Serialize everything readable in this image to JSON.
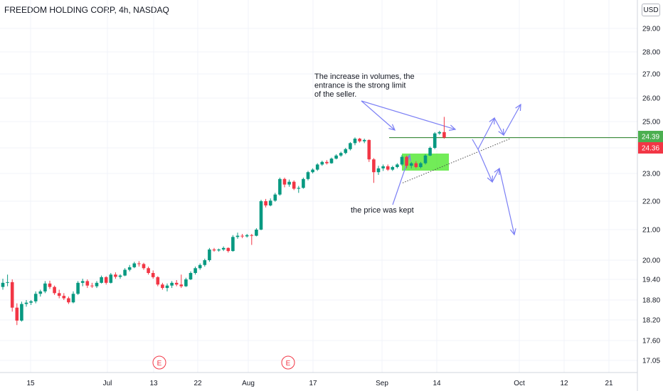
{
  "title": "FREEDOM HOLDING CORP, 4h, NASDAQ",
  "currency": "USD",
  "chart_data": {
    "type": "candlestick",
    "ylim": [
      16.8,
      30.2
    ],
    "y_ticks": [
      "29.00",
      "28.00",
      "27.00",
      "26.00",
      "25.00",
      "24.00",
      "23.00",
      "22.00",
      "21.00",
      "20.00",
      "19.40",
      "18.80",
      "18.20",
      "17.60",
      "17.05"
    ],
    "y_tick_values": [
      29.0,
      28.0,
      27.0,
      26.0,
      25.0,
      24.0,
      23.0,
      22.0,
      21.0,
      20.0,
      19.4,
      18.8,
      18.2,
      17.6,
      17.05
    ],
    "x_ticks": [
      "15",
      "Jul",
      "13",
      "22",
      "Aug",
      "17",
      "Sep",
      "14",
      "Oct",
      "12",
      "21"
    ],
    "price_labels": [
      {
        "text": "24.39",
        "value": 24.39,
        "color": "#4caf50"
      },
      {
        "text": "24.36",
        "value": 24.36,
        "color": "#f23645"
      }
    ],
    "earnings_marker": "E",
    "annotations": {
      "volume_note": [
        "The increase in volumes, the",
        "entrance is the strong limit",
        "of the seller."
      ],
      "price_note": "the price was kept"
    },
    "resistance_level": 24.39,
    "support_line": [
      [
        22.66,
        24.36
      ]
    ],
    "candles": [
      {
        "d": "Jun 11",
        "o": 19.18,
        "h": 19.42,
        "l": 19.1,
        "c": 19.3
      },
      {
        "d": "Jun 12",
        "o": 19.3,
        "h": 19.55,
        "l": 19.2,
        "c": 19.32
      },
      {
        "d": "Jun 13",
        "o": 19.32,
        "h": 19.4,
        "l": 18.45,
        "c": 18.57
      },
      {
        "d": "Jun 14",
        "o": 18.57,
        "h": 18.7,
        "l": 18.05,
        "c": 18.18
      },
      {
        "d": "Jun 15",
        "o": 18.18,
        "h": 18.75,
        "l": 18.15,
        "c": 18.68
      },
      {
        "d": "Jun 16",
        "o": 18.68,
        "h": 18.8,
        "l": 18.6,
        "c": 18.72
      },
      {
        "d": "Jun 17",
        "o": 18.72,
        "h": 18.8,
        "l": 18.65,
        "c": 18.76
      },
      {
        "d": "Jun 18",
        "o": 18.76,
        "h": 19.05,
        "l": 18.7,
        "c": 18.98
      },
      {
        "d": "Jun 19",
        "o": 18.98,
        "h": 19.1,
        "l": 18.9,
        "c": 19.05
      },
      {
        "d": "Jun 20",
        "o": 19.05,
        "h": 19.35,
        "l": 19.0,
        "c": 19.28
      },
      {
        "d": "Jun 21",
        "o": 19.28,
        "h": 19.36,
        "l": 19.12,
        "c": 19.18
      },
      {
        "d": "Jun 22",
        "o": 19.18,
        "h": 19.22,
        "l": 18.95,
        "c": 19.0
      },
      {
        "d": "Jun 23",
        "o": 19.0,
        "h": 19.1,
        "l": 18.85,
        "c": 18.92
      },
      {
        "d": "Jun 24",
        "o": 18.92,
        "h": 19.0,
        "l": 18.8,
        "c": 18.85
      },
      {
        "d": "Jun 25",
        "o": 18.85,
        "h": 18.9,
        "l": 18.68,
        "c": 18.73
      },
      {
        "d": "Jun 26",
        "o": 18.73,
        "h": 19.05,
        "l": 18.7,
        "c": 18.98
      },
      {
        "d": "Jun 27",
        "o": 18.98,
        "h": 19.35,
        "l": 18.95,
        "c": 19.3
      },
      {
        "d": "Jun 28",
        "o": 19.3,
        "h": 19.42,
        "l": 19.2,
        "c": 19.35
      },
      {
        "d": "Jun 29",
        "o": 19.35,
        "h": 19.4,
        "l": 19.15,
        "c": 19.22
      },
      {
        "d": "Jun 30",
        "o": 19.22,
        "h": 19.3,
        "l": 19.15,
        "c": 19.2
      },
      {
        "d": "Jul 1",
        "o": 19.2,
        "h": 19.35,
        "l": 19.15,
        "c": 19.3
      },
      {
        "d": "Jul 2",
        "o": 19.3,
        "h": 19.52,
        "l": 19.28,
        "c": 19.47
      },
      {
        "d": "Jul 3",
        "o": 19.47,
        "h": 19.5,
        "l": 19.25,
        "c": 19.3
      },
      {
        "d": "Jul 4",
        "o": 19.3,
        "h": 19.6,
        "l": 19.28,
        "c": 19.55
      },
      {
        "d": "Jul 5",
        "o": 19.55,
        "h": 19.62,
        "l": 19.42,
        "c": 19.48
      },
      {
        "d": "Jul 6",
        "o": 19.48,
        "h": 19.56,
        "l": 19.42,
        "c": 19.52
      },
      {
        "d": "Jul 7",
        "o": 19.52,
        "h": 19.75,
        "l": 19.5,
        "c": 19.7
      },
      {
        "d": "Jul 8",
        "o": 19.7,
        "h": 19.85,
        "l": 19.65,
        "c": 19.78
      },
      {
        "d": "Jul 9",
        "o": 19.78,
        "h": 19.95,
        "l": 19.75,
        "c": 19.9
      },
      {
        "d": "Jul 10",
        "o": 19.9,
        "h": 19.97,
        "l": 19.8,
        "c": 19.88
      },
      {
        "d": "Jul 11",
        "o": 19.88,
        "h": 19.92,
        "l": 19.7,
        "c": 19.75
      },
      {
        "d": "Jul 12",
        "o": 19.75,
        "h": 19.8,
        "l": 19.55,
        "c": 19.6
      },
      {
        "d": "Jul 13",
        "o": 19.6,
        "h": 19.68,
        "l": 19.42,
        "c": 19.47
      },
      {
        "d": "Jul 14",
        "o": 19.47,
        "h": 19.5,
        "l": 19.2,
        "c": 19.25
      },
      {
        "d": "Jul 15",
        "o": 19.25,
        "h": 19.3,
        "l": 19.1,
        "c": 19.15
      },
      {
        "d": "Jul 16",
        "o": 19.15,
        "h": 19.28,
        "l": 19.05,
        "c": 19.22
      },
      {
        "d": "Jul 17",
        "o": 19.22,
        "h": 19.35,
        "l": 19.15,
        "c": 19.3
      },
      {
        "d": "Jul 18",
        "o": 19.3,
        "h": 19.38,
        "l": 19.2,
        "c": 19.25
      },
      {
        "d": "Jul 19",
        "o": 19.25,
        "h": 19.55,
        "l": 19.15,
        "c": 19.2
      },
      {
        "d": "Jul 20",
        "o": 19.2,
        "h": 19.45,
        "l": 19.18,
        "c": 19.4
      },
      {
        "d": "Jul 21",
        "o": 19.4,
        "h": 19.65,
        "l": 19.38,
        "c": 19.6
      },
      {
        "d": "Jul 22",
        "o": 19.6,
        "h": 19.8,
        "l": 19.55,
        "c": 19.75
      },
      {
        "d": "Jul 23",
        "o": 19.75,
        "h": 19.9,
        "l": 19.7,
        "c": 19.85
      },
      {
        "d": "Jul 24",
        "o": 19.85,
        "h": 20.05,
        "l": 19.8,
        "c": 20.0
      },
      {
        "d": "Jul 25",
        "o": 20.0,
        "h": 20.4,
        "l": 19.95,
        "c": 20.35
      },
      {
        "d": "Jul 26",
        "o": 20.35,
        "h": 20.4,
        "l": 20.28,
        "c": 20.32
      },
      {
        "d": "Jul 27",
        "o": 20.32,
        "h": 20.38,
        "l": 20.28,
        "c": 20.35
      },
      {
        "d": "Jul 28",
        "o": 20.35,
        "h": 20.45,
        "l": 20.3,
        "c": 20.4
      },
      {
        "d": "Jul 29",
        "o": 20.4,
        "h": 20.42,
        "l": 20.25,
        "c": 20.3
      },
      {
        "d": "Jul 30",
        "o": 20.3,
        "h": 20.82,
        "l": 20.28,
        "c": 20.76
      },
      {
        "d": "Jul 31",
        "o": 20.76,
        "h": 20.9,
        "l": 20.7,
        "c": 20.8
      },
      {
        "d": "Aug 1",
        "o": 20.8,
        "h": 20.86,
        "l": 20.72,
        "c": 20.78
      },
      {
        "d": "Aug 2",
        "o": 20.78,
        "h": 20.86,
        "l": 20.74,
        "c": 20.82
      },
      {
        "d": "Aug 3",
        "o": 20.82,
        "h": 20.86,
        "l": 20.5,
        "c": 20.8
      },
      {
        "d": "Aug 4",
        "o": 20.8,
        "h": 21.05,
        "l": 20.78,
        "c": 21.0
      },
      {
        "d": "Aug 5",
        "o": 21.0,
        "h": 22.05,
        "l": 20.98,
        "c": 22.0
      },
      {
        "d": "Aug 6",
        "o": 22.0,
        "h": 22.08,
        "l": 21.78,
        "c": 21.85
      },
      {
        "d": "Aug 7",
        "o": 21.85,
        "h": 22.1,
        "l": 21.82,
        "c": 22.02
      },
      {
        "d": "Aug 8",
        "o": 22.02,
        "h": 22.3,
        "l": 21.98,
        "c": 22.24
      },
      {
        "d": "Aug 9",
        "o": 22.24,
        "h": 22.85,
        "l": 22.2,
        "c": 22.8
      },
      {
        "d": "Aug 10",
        "o": 22.8,
        "h": 22.85,
        "l": 22.5,
        "c": 22.6
      },
      {
        "d": "Aug 11",
        "o": 22.6,
        "h": 22.78,
        "l": 22.52,
        "c": 22.7
      },
      {
        "d": "Aug 12",
        "o": 22.7,
        "h": 22.75,
        "l": 22.4,
        "c": 22.45
      },
      {
        "d": "Aug 13",
        "o": 22.45,
        "h": 22.55,
        "l": 22.3,
        "c": 22.48
      },
      {
        "d": "Aug 14",
        "o": 22.48,
        "h": 22.85,
        "l": 22.45,
        "c": 22.8
      },
      {
        "d": "Aug 15",
        "o": 22.8,
        "h": 23.1,
        "l": 22.75,
        "c": 23.05
      },
      {
        "d": "Aug 16",
        "o": 23.05,
        "h": 23.2,
        "l": 23.0,
        "c": 23.15
      },
      {
        "d": "Aug 17",
        "o": 23.15,
        "h": 23.4,
        "l": 23.1,
        "c": 23.35
      },
      {
        "d": "Aug 18",
        "o": 23.35,
        "h": 23.5,
        "l": 23.3,
        "c": 23.45
      },
      {
        "d": "Aug 19",
        "o": 23.45,
        "h": 23.52,
        "l": 23.35,
        "c": 23.4
      },
      {
        "d": "Aug 20",
        "o": 23.4,
        "h": 23.62,
        "l": 23.38,
        "c": 23.58
      },
      {
        "d": "Aug 21",
        "o": 23.58,
        "h": 23.75,
        "l": 23.55,
        "c": 23.7
      },
      {
        "d": "Aug 22",
        "o": 23.7,
        "h": 23.85,
        "l": 23.65,
        "c": 23.8
      },
      {
        "d": "Aug 23",
        "o": 23.8,
        "h": 24.0,
        "l": 23.75,
        "c": 23.95
      },
      {
        "d": "Aug 24",
        "o": 23.95,
        "h": 24.22,
        "l": 23.9,
        "c": 24.18
      },
      {
        "d": "Aug 25",
        "o": 24.18,
        "h": 24.4,
        "l": 24.1,
        "c": 24.35
      },
      {
        "d": "Aug 26",
        "o": 24.35,
        "h": 24.38,
        "l": 24.2,
        "c": 24.25
      },
      {
        "d": "Aug 27",
        "o": 24.25,
        "h": 24.35,
        "l": 24.18,
        "c": 24.3
      },
      {
        "d": "Aug 28",
        "o": 24.3,
        "h": 24.32,
        "l": 23.45,
        "c": 23.55
      },
      {
        "d": "Aug 29",
        "o": 23.55,
        "h": 23.6,
        "l": 22.66,
        "c": 23.05
      },
      {
        "d": "Aug 30",
        "o": 23.05,
        "h": 23.3,
        "l": 22.95,
        "c": 23.2
      },
      {
        "d": "Aug 31",
        "o": 23.2,
        "h": 23.35,
        "l": 23.1,
        "c": 23.28
      },
      {
        "d": "Sep 1",
        "o": 23.28,
        "h": 23.35,
        "l": 23.1,
        "c": 23.15
      },
      {
        "d": "Sep 2",
        "o": 23.15,
        "h": 23.3,
        "l": 23.1,
        "c": 23.25
      },
      {
        "d": "Sep 3",
        "o": 23.25,
        "h": 23.4,
        "l": 23.2,
        "c": 23.35
      },
      {
        "d": "Sep 4",
        "o": 23.35,
        "h": 23.72,
        "l": 23.3,
        "c": 23.65
      },
      {
        "d": "Sep 5",
        "o": 23.65,
        "h": 23.7,
        "l": 23.2,
        "c": 23.3
      },
      {
        "d": "Sep 6",
        "o": 23.3,
        "h": 23.45,
        "l": 23.2,
        "c": 23.4
      },
      {
        "d": "Sep 7",
        "o": 23.4,
        "h": 23.48,
        "l": 23.2,
        "c": 23.25
      },
      {
        "d": "Sep 8",
        "o": 23.25,
        "h": 23.45,
        "l": 23.2,
        "c": 23.4
      },
      {
        "d": "Sep 9",
        "o": 23.4,
        "h": 23.75,
        "l": 23.35,
        "c": 23.7
      },
      {
        "d": "Sep 10",
        "o": 23.7,
        "h": 24.05,
        "l": 23.68,
        "c": 24.0
      },
      {
        "d": "Sep 11",
        "o": 24.0,
        "h": 24.6,
        "l": 23.95,
        "c": 24.55
      },
      {
        "d": "Sep 12",
        "o": 24.55,
        "h": 24.65,
        "l": 24.5,
        "c": 24.6
      },
      {
        "d": "Sep 13",
        "o": 24.6,
        "h": 25.2,
        "l": 24.35,
        "c": 24.39
      }
    ]
  }
}
